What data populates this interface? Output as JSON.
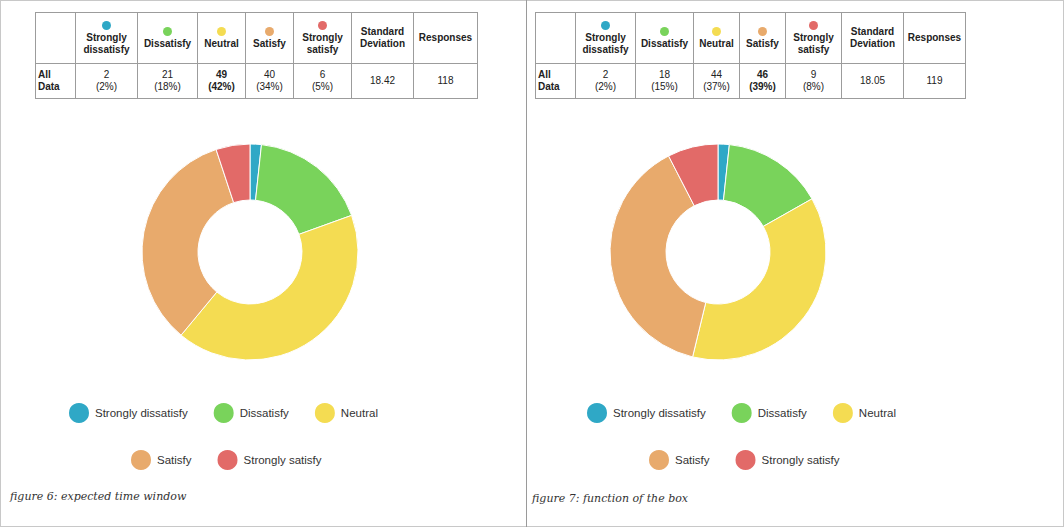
{
  "chart_data": [
    {
      "type": "pie",
      "categories": [
        "Strongly dissatisfy",
        "Dissatisfy",
        "Neutral",
        "Satisfy",
        "Strongly satisfy"
      ],
      "values": [
        2,
        21,
        49,
        40,
        6
      ],
      "colors": [
        "#2fa8c6",
        "#79d35b",
        "#f4dc52",
        "#e8aa6c",
        "#e26a68"
      ],
      "legend": "bottom",
      "data_labels": false
    },
    {
      "type": "pie",
      "categories": [
        "Strongly dissatisfy",
        "Dissatisfy",
        "Neutral",
        "Satisfy",
        "Strongly satisfy"
      ],
      "values": [
        2,
        18,
        44,
        46,
        9
      ],
      "colors": [
        "#2fa8c6",
        "#79d35b",
        "#f4dc52",
        "#e8aa6c",
        "#e26a68"
      ],
      "legend": "bottom",
      "data_labels": false
    }
  ],
  "tables": [
    {
      "columns": [
        "Strongly dissatisfy",
        "Dissatisfy",
        "Neutral",
        "Satisfy",
        "Strongly satisfy",
        "Standard Deviation",
        "Responses"
      ],
      "rows": [
        {
          "label": "All Data",
          "cells": [
            {
              "text": [
                "2",
                "(2%)"
              ]
            },
            {
              "text": [
                "21",
                "(18%)"
              ]
            },
            {
              "text": [
                "49",
                "(42%)"
              ],
              "bold": true
            },
            {
              "text": [
                "40",
                "(34%)"
              ]
            },
            {
              "text": [
                "6",
                "(5%)"
              ]
            },
            {
              "text": [
                "18.42"
              ]
            },
            {
              "text": [
                "118"
              ]
            }
          ]
        }
      ]
    },
    {
      "columns": [
        "Strongly dissatisfy",
        "Dissatisfy",
        "Neutral",
        "Satisfy",
        "Strongly satisfy",
        "Standard Deviation",
        "Responses"
      ],
      "rows": [
        {
          "label": "All Data",
          "cells": [
            {
              "text": [
                "2",
                "(2%)"
              ]
            },
            {
              "text": [
                "18",
                "(15%)"
              ]
            },
            {
              "text": [
                "44",
                "(37%)"
              ]
            },
            {
              "text": [
                "46",
                "(39%)"
              ],
              "bold": true
            },
            {
              "text": [
                "9",
                "(8%)"
              ]
            },
            {
              "text": [
                "18.05"
              ]
            },
            {
              "text": [
                "119"
              ]
            }
          ]
        }
      ]
    }
  ],
  "captions": [
    "figure 6: expected time window",
    "figure 7: function of the box"
  ]
}
